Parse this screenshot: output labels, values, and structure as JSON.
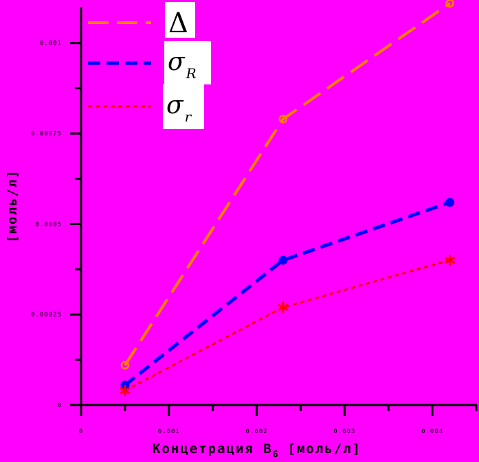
{
  "chart_data": {
    "type": "line",
    "xlabel": "Концетрация B",
    "xlabel_sub": "6",
    "xlabel_unit": "[моль/л]",
    "ylabel": "[моль/л]",
    "xlim": [
      0,
      0.0045
    ],
    "ylim": [
      0,
      0.0011
    ],
    "x_ticks": [
      0,
      0.001,
      0.002,
      0.003,
      0.004
    ],
    "x_tick_labels": [
      "0",
      "0.001",
      "0.002",
      "0.003",
      "0.004"
    ],
    "y_ticks": [
      0,
      0.00025,
      0.0005,
      0.00075,
      0.001
    ],
    "y_tick_labels": [
      "0",
      "0.00025",
      "0.0005",
      "0.00075",
      "0.001"
    ],
    "grid": false,
    "legend_position": "top-left",
    "series": [
      {
        "name": "Δ",
        "symbol": "Δ",
        "subscript": "",
        "color": "#ff8000",
        "dash": "long-dash",
        "marker": "open-circle",
        "x": [
          0.0005,
          0.0023,
          0.0042
        ],
        "y": [
          0.00011,
          0.00079,
          0.00111
        ]
      },
      {
        "name": "σR",
        "symbol": "σ",
        "subscript": "R",
        "color": "#0000ff",
        "dash": "dash",
        "marker": "filled-circle",
        "x": [
          0.0005,
          0.0023,
          0.0042
        ],
        "y": [
          5.5e-05,
          0.0004,
          0.00056
        ]
      },
      {
        "name": "σr",
        "symbol": "σ",
        "subscript": "r",
        "color": "#ff0000",
        "dash": "short-dash",
        "marker": "asterisk",
        "x": [
          0.0005,
          0.0023,
          0.0042
        ],
        "y": [
          4e-05,
          0.00027,
          0.0004
        ]
      }
    ]
  }
}
